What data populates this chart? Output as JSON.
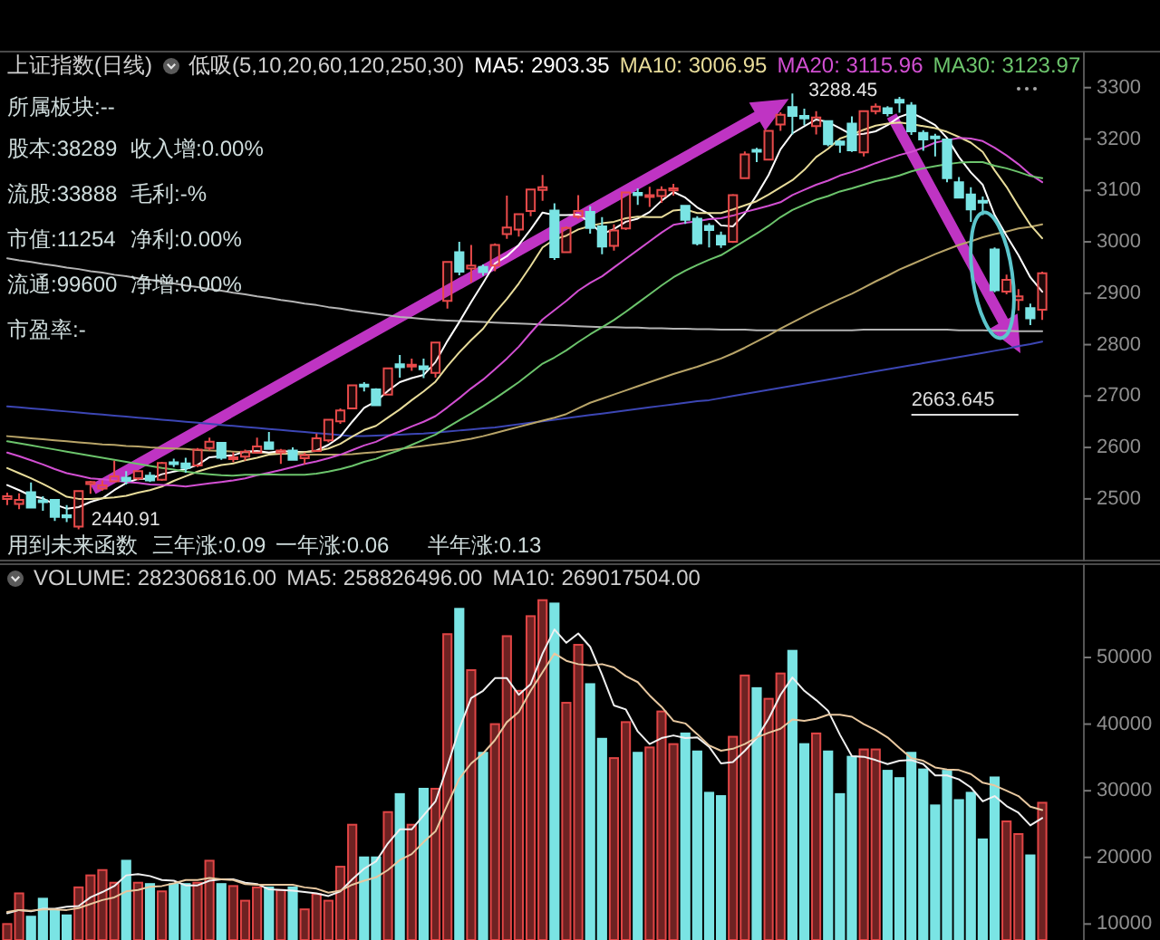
{
  "chart_data": [
    {
      "type": "candlestick",
      "title": "上证指数(日线)",
      "legend_title": "低吸(5,10,20,60,120,250,30)",
      "legend": "top",
      "categories": [
        null,
        null,
        null,
        null,
        null,
        null,
        null,
        null,
        null,
        null,
        null,
        null,
        null,
        null,
        null,
        null,
        null,
        null,
        null,
        null,
        null,
        null,
        null,
        null,
        null,
        null,
        null,
        null,
        null,
        null,
        null,
        null,
        null,
        null,
        null,
        null,
        null,
        null,
        null,
        null,
        null,
        null,
        null,
        null,
        null,
        null,
        null,
        null,
        null,
        null,
        null,
        null,
        null,
        null,
        null,
        null,
        null,
        null,
        null,
        null,
        null,
        null,
        null,
        null,
        null,
        null,
        null,
        null,
        null,
        null,
        null,
        null,
        null,
        null,
        null,
        null,
        null,
        null,
        null,
        null,
        null,
        null,
        null,
        null,
        null,
        null,
        null,
        null
      ],
      "ohlc": [
        [
          2500,
          2512,
          2488,
          2505
        ],
        [
          2490,
          2511,
          2480,
          2498
        ],
        [
          2513,
          2532,
          2482,
          2483
        ],
        [
          2497,
          2505,
          2477,
          2494
        ],
        [
          2498,
          2500,
          2457,
          2465
        ],
        [
          2468,
          2488,
          2455,
          2464
        ],
        [
          2446,
          2515,
          2440.91,
          2515
        ],
        [
          2529,
          2535,
          2510,
          2533
        ],
        [
          2520,
          2536,
          2516,
          2526
        ],
        [
          2534,
          2574,
          2533,
          2544
        ],
        [
          2541,
          2554,
          2528,
          2535
        ],
        [
          2540,
          2555,
          2536,
          2554
        ],
        [
          2545,
          2552,
          2533,
          2536
        ],
        [
          2537,
          2572,
          2535,
          2570
        ],
        [
          2571,
          2578,
          2562,
          2570
        ],
        [
          2569,
          2580,
          2551,
          2560
        ],
        [
          2565,
          2599,
          2562,
          2596
        ],
        [
          2599,
          2619,
          2594,
          2611
        ],
        [
          2609,
          2609,
          2576,
          2580
        ],
        [
          2578,
          2591,
          2571,
          2581
        ],
        [
          2582,
          2596,
          2574,
          2592
        ],
        [
          2590,
          2619,
          2588,
          2602
        ],
        [
          2610,
          2630,
          2596,
          2597
        ],
        [
          2590,
          2597,
          2568,
          2594
        ],
        [
          2594,
          2600,
          2575,
          2576
        ],
        [
          2579,
          2590,
          2567,
          2585
        ],
        [
          2593,
          2627,
          2593,
          2618
        ],
        [
          2614,
          2654,
          2610,
          2654
        ],
        [
          2651,
          2676,
          2646,
          2672
        ],
        [
          2676,
          2722,
          2676,
          2721
        ],
        [
          2722,
          2727,
          2709,
          2720
        ],
        [
          2713,
          2715,
          2682,
          2682
        ],
        [
          2703,
          2755,
          2703,
          2754
        ],
        [
          2762,
          2780,
          2736,
          2756
        ],
        [
          2759,
          2773,
          2749,
          2761
        ],
        [
          2758,
          2773,
          2735,
          2752
        ],
        [
          2745,
          2806,
          2736,
          2804
        ],
        [
          2885,
          2962,
          2870,
          2961
        ],
        [
          2980,
          3000,
          2935,
          2942
        ],
        [
          2948,
          2994,
          2921,
          2954
        ],
        [
          2951,
          2956,
          2934,
          2941
        ],
        [
          2954,
          2997,
          2943,
          2994
        ],
        [
          3015,
          3090,
          3006,
          3028
        ],
        [
          3024,
          3055,
          3010,
          3054
        ],
        [
          3060,
          3103,
          3050,
          3102
        ],
        [
          3101,
          3130,
          3080,
          3106
        ],
        [
          3061,
          3075,
          2965,
          2970
        ],
        [
          2980,
          3030,
          2980,
          3027
        ],
        [
          3049,
          3091,
          3045,
          3060
        ],
        [
          3058,
          3069,
          3016,
          3027
        ],
        [
          3030,
          3048,
          2976,
          2991
        ],
        [
          2992,
          3034,
          2983,
          3022
        ],
        [
          3026,
          3097,
          3023,
          3096
        ],
        [
          3095,
          3104,
          3072,
          3091
        ],
        [
          3088,
          3107,
          3068,
          3091
        ],
        [
          3089,
          3108,
          3076,
          3101
        ],
        [
          3100,
          3113,
          3090,
          3104
        ],
        [
          3070,
          3072,
          3035,
          3043
        ],
        [
          3045,
          3050,
          2993,
          2997
        ],
        [
          3031,
          3036,
          2989,
          3023
        ],
        [
          3012,
          3020,
          2988,
          2995
        ],
        [
          3000,
          3093,
          2998,
          3091
        ],
        [
          3124,
          3176,
          3124,
          3170
        ],
        [
          3179,
          3183,
          3155,
          3177
        ],
        [
          3160,
          3217,
          3158,
          3216
        ],
        [
          3228,
          3252,
          3216,
          3247
        ],
        [
          3262,
          3288.45,
          3209,
          3245
        ],
        [
          3245,
          3259,
          3227,
          3240
        ],
        [
          3225,
          3254,
          3209,
          3242
        ],
        [
          3235,
          3235,
          3186,
          3190
        ],
        [
          3195,
          3198,
          3173,
          3189
        ],
        [
          3230,
          3244,
          3175,
          3178
        ],
        [
          3174,
          3254,
          3166,
          3254
        ],
        [
          3254,
          3269,
          3248,
          3263
        ],
        [
          3260,
          3264,
          3244,
          3250
        ],
        [
          3276,
          3282,
          3251,
          3271
        ],
        [
          3265,
          3272,
          3208,
          3215
        ],
        [
          3212,
          3217,
          3177,
          3199
        ],
        [
          3205,
          3210,
          3166,
          3202
        ],
        [
          3199,
          3199,
          3116,
          3124
        ],
        [
          3116,
          3126,
          3086,
          3086
        ],
        [
          3092,
          3106,
          3039,
          3063
        ],
        [
          3080,
          3088,
          3052,
          3078
        ],
        [
          2985,
          2989,
          2902,
          2906
        ],
        [
          2903,
          2936,
          2898,
          2926
        ],
        [
          2887,
          2908,
          2866,
          2894
        ],
        [
          2871,
          2880,
          2838,
          2851
        ],
        [
          2868,
          2942,
          2848,
          2939
        ]
      ],
      "colors": [
        "#e84a4a",
        "#e84a4a",
        "#7ae4e4",
        "#7ae4e4",
        "#7ae4e4",
        "#7ae4e4",
        "#e84a4a",
        "#e84a4a",
        "#e84a4a",
        "#e84a4a",
        "#7ae4e4",
        "#e84a4a",
        "#7ae4e4",
        "#e84a4a",
        "#7ae4e4",
        "#7ae4e4",
        "#e84a4a",
        "#e84a4a",
        "#7ae4e4",
        "#e84a4a",
        "#e84a4a",
        "#e84a4a",
        "#7ae4e4",
        "#e84a4a",
        "#7ae4e4",
        "#e84a4a",
        "#e84a4a",
        "#e84a4a",
        "#e84a4a",
        "#e84a4a",
        "#7ae4e4",
        "#7ae4e4",
        "#e84a4a",
        "#7ae4e4",
        "#e84a4a",
        "#7ae4e4",
        "#e84a4a",
        "#e84a4a",
        "#7ae4e4",
        "#e84a4a",
        "#7ae4e4",
        "#e84a4a",
        "#e84a4a",
        "#e84a4a",
        "#e84a4a",
        "#e84a4a",
        "#7ae4e4",
        "#e84a4a",
        "#e84a4a",
        "#7ae4e4",
        "#7ae4e4",
        "#e84a4a",
        "#e84a4a",
        "#7ae4e4",
        "#e84a4a",
        "#e84a4a",
        "#e84a4a",
        "#7ae4e4",
        "#7ae4e4",
        "#7ae4e4",
        "#7ae4e4",
        "#e84a4a",
        "#e84a4a",
        "#7ae4e4",
        "#e84a4a",
        "#e84a4a",
        "#7ae4e4",
        "#7ae4e4",
        "#e84a4a",
        "#7ae4e4",
        "#7ae4e4",
        "#7ae4e4",
        "#e84a4a",
        "#e84a4a",
        "#7ae4e4",
        "#7ae4e4",
        "#7ae4e4",
        "#7ae4e4",
        "#7ae4e4",
        "#7ae4e4",
        "#7ae4e4",
        "#7ae4e4",
        "#7ae4e4",
        "#7ae4e4",
        "#e84a4a",
        "#e84a4a",
        "#7ae4e4",
        "#e84a4a"
      ],
      "series": [
        {
          "type": "line",
          "color": "#b4b4b4",
          "values": [
            2968,
            2964,
            2961,
            2957,
            2954,
            2950,
            2947,
            2943,
            2940,
            2936,
            2933,
            2929,
            2926,
            2922,
            2919,
            2915,
            2912,
            2908,
            2905,
            2901,
            2898,
            2894,
            2891,
            2887,
            2884,
            2880,
            2877,
            2873,
            2870,
            2866,
            2863,
            2860,
            2857,
            2854,
            2852,
            2850,
            2848,
            2847,
            2846,
            2845,
            2844,
            2843,
            2842,
            2841,
            2840,
            2839,
            2838,
            2837,
            2836,
            2835,
            2834,
            2834,
            2833,
            2833,
            2832,
            2832,
            2831,
            2831,
            2830,
            2830,
            2829,
            2829,
            2829,
            2828,
            2828,
            2828,
            2828,
            2828,
            2828,
            2828,
            2828,
            2828,
            2829,
            2829,
            2829,
            2829,
            2829,
            2829,
            2829,
            2829,
            2828,
            2828,
            2828,
            2827,
            2827,
            2826,
            2826,
            2826
          ]
        },
        {
          "type": "line",
          "color": "#3c46b4",
          "values": [
            2680,
            2678,
            2676,
            2674,
            2672,
            2670,
            2668,
            2666,
            2664,
            2662,
            2660,
            2658,
            2656,
            2654,
            2652,
            2650,
            2648,
            2646,
            2644,
            2642,
            2640,
            2638,
            2636,
            2634,
            2632,
            2630,
            2628,
            2626,
            2624,
            2622,
            2622,
            2623,
            2624,
            2625,
            2626,
            2627,
            2629,
            2631,
            2633,
            2635,
            2637,
            2639,
            2642,
            2645,
            2648,
            2651,
            2654,
            2657,
            2660,
            2663,
            2666,
            2669,
            2672,
            2675,
            2678,
            2681,
            2684,
            2687,
            2690,
            2692,
            2696,
            2700,
            2704,
            2708,
            2712,
            2716,
            2720,
            2724,
            2728,
            2732,
            2736,
            2740,
            2744,
            2748,
            2752,
            2756,
            2760,
            2764,
            2768,
            2772,
            2776,
            2780,
            2784,
            2788,
            2792,
            2797,
            2801,
            2806
          ]
        },
        {
          "type": "line",
          "color": "#b8a468",
          "values": [
            2622,
            2620,
            2618,
            2616,
            2614,
            2612,
            2610,
            2608,
            2606,
            2605,
            2603,
            2602,
            2600,
            2599,
            2598,
            2597,
            2595,
            2594,
            2593,
            2592,
            2591,
            2590,
            2589,
            2588,
            2587,
            2586,
            2586,
            2586,
            2586,
            2587,
            2589,
            2591,
            2594,
            2597,
            2600,
            2603,
            2606,
            2609,
            2613,
            2617,
            2622,
            2628,
            2634,
            2640,
            2646,
            2652,
            2658,
            2665,
            2676,
            2687,
            2695,
            2703,
            2711,
            2719,
            2727,
            2735,
            2743,
            2750,
            2757,
            2765,
            2773,
            2783,
            2794,
            2806,
            2818,
            2831,
            2843,
            2855,
            2867,
            2878,
            2889,
            2899,
            2911,
            2923,
            2934,
            2946,
            2956,
            2966,
            2976,
            2985,
            2994,
            3001,
            3009,
            3015,
            3020,
            3026,
            3029,
            3034
          ]
        },
        {
          "name": "MA5: 2903.35",
          "type": "line",
          "color": "#ffffff",
          "values": [
            2527,
            2517,
            2506,
            2501,
            2489,
            2481,
            2484,
            2494,
            2501,
            2517,
            2531,
            2539,
            2539,
            2548,
            2553,
            2558,
            2566,
            2581,
            2583,
            2585,
            2592,
            2593,
            2590,
            2593,
            2592,
            2591,
            2594,
            2605,
            2621,
            2650,
            2677,
            2690,
            2710,
            2727,
            2735,
            2741,
            2766,
            2807,
            2844,
            2883,
            2920,
            2958,
            2972,
            2994,
            3024,
            3057,
            3052,
            3052,
            3053,
            3038,
            3015,
            3025,
            3039,
            3045,
            3058,
            3080,
            3097,
            3086,
            3067,
            3054,
            3032,
            3030,
            3055,
            3091,
            3130,
            3180,
            3211,
            3225,
            3238,
            3233,
            3221,
            3208,
            3210,
            3215,
            3227,
            3243,
            3251,
            3240,
            3227,
            3202,
            3165,
            3135,
            3111,
            3052,
            3012,
            2974,
            2931,
            2903
          ]
        },
        {
          "name": "MA10: 3006.95",
          "type": "line",
          "color": "#e8dc9a",
          "values": [
            2560,
            2550,
            2540,
            2529,
            2517,
            2504,
            2500,
            2500,
            2501,
            2503,
            2506,
            2512,
            2517,
            2524,
            2535,
            2544,
            2553,
            2560,
            2566,
            2569,
            2575,
            2580,
            2586,
            2588,
            2589,
            2591,
            2593,
            2598,
            2607,
            2621,
            2634,
            2642,
            2658,
            2674,
            2692,
            2709,
            2728,
            2758,
            2785,
            2809,
            2831,
            2862,
            2889,
            2919,
            2953,
            2989,
            3005,
            3012,
            3024,
            3031,
            3036,
            3039,
            3046,
            3049,
            3048,
            3048,
            3061,
            3063,
            3056,
            3056,
            3056,
            3063,
            3071,
            3079,
            3092,
            3106,
            3120,
            3140,
            3165,
            3181,
            3201,
            3209,
            3218,
            3226,
            3230,
            3232,
            3229,
            3225,
            3221,
            3214,
            3204,
            3193,
            3175,
            3139,
            3107,
            3069,
            3033,
            3007
          ]
        },
        {
          "name": "MA20: 3115.96",
          "type": "line",
          "color": "#d24fd2",
          "values": [
            2590,
            2583,
            2575,
            2567,
            2558,
            2550,
            2545,
            2540,
            2538,
            2536,
            2533,
            2531,
            2528,
            2527,
            2526,
            2524,
            2527,
            2530,
            2533,
            2536,
            2540,
            2546,
            2551,
            2556,
            2562,
            2568,
            2573,
            2579,
            2586,
            2595,
            2604,
            2611,
            2622,
            2631,
            2641,
            2650,
            2661,
            2678,
            2696,
            2715,
            2732,
            2752,
            2773,
            2796,
            2823,
            2849,
            2867,
            2885,
            2905,
            2920,
            2933,
            2950,
            2967,
            2984,
            3001,
            3018,
            3033,
            3037,
            3040,
            3044,
            3046,
            3051,
            3058,
            3064,
            3070,
            3077,
            3091,
            3101,
            3111,
            3119,
            3129,
            3136,
            3144,
            3153,
            3161,
            3169,
            3175,
            3183,
            3193,
            3198,
            3202,
            3201,
            3196,
            3183,
            3168,
            3151,
            3131,
            3116
          ]
        },
        {
          "name": "MA30: 3123.97",
          "type": "line",
          "color": "#6cc46c",
          "values": [
            2612,
            2608,
            2604,
            2600,
            2596,
            2592,
            2588,
            2584,
            2580,
            2576,
            2572,
            2568,
            2564,
            2560,
            2557,
            2553,
            2550,
            2548,
            2546,
            2545,
            2547,
            2547,
            2548,
            2547,
            2547,
            2547,
            2549,
            2553,
            2558,
            2564,
            2572,
            2578,
            2587,
            2595,
            2605,
            2615,
            2625,
            2639,
            2653,
            2666,
            2680,
            2695,
            2711,
            2727,
            2745,
            2763,
            2775,
            2789,
            2805,
            2820,
            2834,
            2848,
            2864,
            2881,
            2898,
            2915,
            2931,
            2944,
            2955,
            2965,
            2974,
            2988,
            3002,
            3016,
            3031,
            3048,
            3062,
            3072,
            3082,
            3089,
            3098,
            3104,
            3111,
            3118,
            3123,
            3129,
            3137,
            3143,
            3147,
            3151,
            3154,
            3155,
            3155,
            3148,
            3143,
            3136,
            3128,
            3124
          ]
        }
      ],
      "ylim": [
        2380,
        3370
      ],
      "yticks": [
        2500,
        2600,
        2700,
        2800,
        2900,
        3000,
        3100,
        3200,
        3300
      ],
      "tick_labels": "y",
      "ref_lines": [
        {
          "axis": "y",
          "value": 2663.645,
          "label": "2663.645",
          "color": "#dcdcdc"
        }
      ],
      "annotations": [
        "所属板块:--",
        "股本:38289",
        "收入增:0.00%",
        "流股:33888",
        "毛利:-%",
        "市值:11254",
        "净利:0.00%",
        "流通:99600",
        "净增:0.00%",
        "市盈率:-",
        "用到未来函数",
        "三年涨:0.09",
        "一年涨:0.06",
        "半年涨:0.13",
        "3288.45",
        "2440.91"
      ]
    },
    {
      "type": "bar",
      "annotations": [
        "VOLUME: 282306816.00",
        "MA5: 258826496.00",
        "MA10: 269017504.00"
      ],
      "categories": [
        null,
        null,
        null,
        null,
        null,
        null,
        null,
        null,
        null,
        null,
        null,
        null,
        null,
        null,
        null,
        null,
        null,
        null,
        null,
        null,
        null,
        null,
        null,
        null,
        null,
        null,
        null,
        null,
        null,
        null,
        null,
        null,
        null,
        null,
        null,
        null,
        null,
        null,
        null,
        null,
        null,
        null,
        null,
        null,
        null,
        null,
        null,
        null,
        null,
        null,
        null,
        null,
        null,
        null,
        null,
        null,
        null,
        null,
        null,
        null,
        null,
        null,
        null,
        null,
        null,
        null,
        null,
        null,
        null,
        null,
        null,
        null,
        null,
        null,
        null,
        null,
        null,
        null,
        null,
        null,
        null,
        null,
        null,
        null,
        null,
        null,
        null,
        null
      ],
      "series": [
        {
          "type": "bar",
          "values": [
            10000,
            14600,
            11100,
            13800,
            12000,
            11300,
            15500,
            17300,
            18100,
            16200,
            19500,
            16200,
            16000,
            14900,
            16000,
            16000,
            16200,
            19500,
            16000,
            15700,
            13500,
            15500,
            15500,
            15100,
            15500,
            12200,
            14500,
            13500,
            18600,
            24900,
            20000,
            20000,
            26800,
            29500,
            24900,
            30300,
            30300,
            53500,
            57300,
            48100,
            35700,
            40000,
            53200,
            45000,
            56200,
            58600,
            58100,
            43200,
            51900,
            46000,
            37800,
            34900,
            40300,
            35700,
            36500,
            41900,
            37000,
            38600,
            35900,
            29700,
            29200,
            38100,
            47300,
            45400,
            43800,
            47600,
            51000,
            37000,
            38600,
            35900,
            29500,
            35100,
            36200,
            36200,
            33000,
            31900,
            35700,
            33200,
            27800,
            33000,
            28600,
            29700,
            22700,
            32000,
            25400,
            23500,
            20300,
            28200
          ],
          "colors": [
            "#6e2222",
            "#6e2222",
            "#7ae4e4",
            "#7ae4e4",
            "#7ae4e4",
            "#7ae4e4",
            "#6e2222",
            "#6e2222",
            "#6e2222",
            "#6e2222",
            "#7ae4e4",
            "#6e2222",
            "#7ae4e4",
            "#6e2222",
            "#7ae4e4",
            "#7ae4e4",
            "#6e2222",
            "#6e2222",
            "#7ae4e4",
            "#6e2222",
            "#6e2222",
            "#6e2222",
            "#7ae4e4",
            "#6e2222",
            "#7ae4e4",
            "#6e2222",
            "#6e2222",
            "#6e2222",
            "#6e2222",
            "#6e2222",
            "#7ae4e4",
            "#7ae4e4",
            "#6e2222",
            "#7ae4e4",
            "#6e2222",
            "#7ae4e4",
            "#6e2222",
            "#6e2222",
            "#7ae4e4",
            "#6e2222",
            "#7ae4e4",
            "#6e2222",
            "#6e2222",
            "#6e2222",
            "#6e2222",
            "#6e2222",
            "#7ae4e4",
            "#6e2222",
            "#6e2222",
            "#7ae4e4",
            "#7ae4e4",
            "#6e2222",
            "#6e2222",
            "#7ae4e4",
            "#6e2222",
            "#6e2222",
            "#6e2222",
            "#7ae4e4",
            "#7ae4e4",
            "#7ae4e4",
            "#7ae4e4",
            "#6e2222",
            "#6e2222",
            "#7ae4e4",
            "#6e2222",
            "#6e2222",
            "#7ae4e4",
            "#7ae4e4",
            "#6e2222",
            "#7ae4e4",
            "#7ae4e4",
            "#7ae4e4",
            "#6e2222",
            "#6e2222",
            "#7ae4e4",
            "#7ae4e4",
            "#7ae4e4",
            "#7ae4e4",
            "#7ae4e4",
            "#7ae4e4",
            "#7ae4e4",
            "#7ae4e4",
            "#7ae4e4",
            "#7ae4e4",
            "#6e2222",
            "#6e2222",
            "#7ae4e4",
            "#6e2222"
          ]
        },
        {
          "type": "line",
          "color": "#f0f0f0",
          "values": [
            11600,
            12100,
            11900,
            12300,
            12300,
            12600,
            12700,
            14000,
            14800,
            15700,
            17300,
            17500,
            17200,
            16600,
            16500,
            15800,
            15800,
            16500,
            16700,
            16700,
            16200,
            16000,
            15200,
            15100,
            15000,
            14800,
            14600,
            14200,
            14900,
            16700,
            18300,
            19400,
            22100,
            24200,
            24200,
            26300,
            28400,
            33700,
            39300,
            43900,
            45000,
            46900,
            46900,
            44400,
            46000,
            50600,
            54200,
            52200,
            53600,
            51600,
            47400,
            42800,
            42200,
            38900,
            37000,
            37900,
            38300,
            37900,
            38000,
            36600,
            34100,
            34300,
            36000,
            37900,
            40800,
            44400,
            47000,
            45000,
            43600,
            42000,
            38400,
            35200,
            35100,
            34600,
            34000,
            34500,
            34600,
            34000,
            32300,
            32300,
            31700,
            30500,
            28400,
            29200,
            27700,
            26700,
            24800,
            25900
          ]
        },
        {
          "type": "line",
          "color": "#e8c8a0",
          "values": [
            11800,
            12100,
            12000,
            12200,
            12200,
            12100,
            12400,
            13000,
            13600,
            14000,
            14900,
            15100,
            15600,
            15700,
            16100,
            16600,
            16600,
            16900,
            16700,
            16600,
            16000,
            15900,
            15900,
            15900,
            15900,
            15500,
            15300,
            14700,
            15000,
            15900,
            16500,
            17000,
            18100,
            19600,
            20500,
            22300,
            23900,
            27900,
            31800,
            34100,
            35600,
            37600,
            40300,
            41800,
            45000,
            47800,
            50600,
            49500,
            49000,
            48800,
            49000,
            48500,
            47200,
            46300,
            44300,
            42600,
            40500,
            40100,
            38500,
            36800,
            36000,
            36300,
            37000,
            38000,
            38700,
            39300,
            40700,
            40500,
            40800,
            41400,
            41400,
            41100,
            40000,
            39100,
            38000,
            36400,
            34900,
            34500,
            33500,
            33200,
            33100,
            32500,
            31200,
            30800,
            30000,
            29200,
            27600,
            27100
          ]
        }
      ],
      "ylim": [
        7600,
        64000
      ],
      "yticks": [
        10000,
        20000,
        30000,
        40000,
        50000
      ],
      "tick_labels": "y"
    }
  ]
}
